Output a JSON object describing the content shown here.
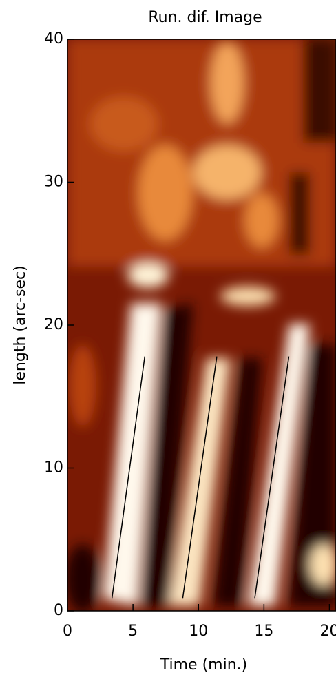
{
  "chart_data": {
    "type": "line",
    "title": "Run. dif. Image",
    "x_label": "Time (min.)",
    "y_label": "length (arc-sec)",
    "xlim": [
      0,
      20.5
    ],
    "xticks": [
      0,
      5,
      10,
      15,
      20
    ],
    "ylim": [
      0,
      40
    ],
    "yticks": [
      0,
      10,
      20,
      30,
      40
    ],
    "series": [
      {
        "color": "#000000",
        "x": [
          3.4,
          5.9
        ],
        "values": [
          0.9,
          17.8
        ]
      },
      {
        "color": "#000000",
        "x": [
          8.8,
          11.4
        ],
        "values": [
          0.9,
          17.8
        ]
      },
      {
        "color": "#000000",
        "x": [
          14.3,
          16.9
        ],
        "values": [
          0.9,
          17.8
        ]
      }
    ]
  }
}
